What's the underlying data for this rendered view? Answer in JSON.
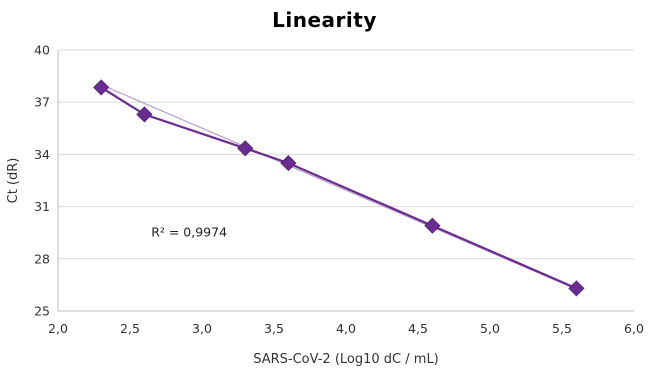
{
  "chart_data": {
    "type": "scatter",
    "title": "Linearity",
    "xlabel": "SARS-CoV-2 (Log10 dC / mL)",
    "ylabel": "Ct (dR)",
    "xlim": [
      2.0,
      6.0
    ],
    "ylim": [
      25,
      40
    ],
    "x_ticks": [
      "2,0",
      "2,5",
      "3,0",
      "3,5",
      "4,0",
      "4,5",
      "5,0",
      "5,5",
      "6,0"
    ],
    "y_ticks": [
      "25",
      "28",
      "31",
      "34",
      "37",
      "40"
    ],
    "x_tick_values": [
      2.0,
      2.5,
      3.0,
      3.5,
      4.0,
      4.5,
      5.0,
      5.5,
      6.0
    ],
    "y_tick_values": [
      25,
      28,
      31,
      34,
      37,
      40
    ],
    "grid": true,
    "series": [
      {
        "x": [
          2.3,
          2.6,
          3.3,
          3.6,
          4.6,
          5.6
        ],
        "y": [
          37.85,
          36.3,
          34.35,
          33.5,
          29.9,
          26.3
        ],
        "color": "#6a2c91",
        "marker": "diamond",
        "connected": true
      }
    ],
    "trendline": {
      "x": [
        2.3,
        5.6
      ],
      "y": [
        38.0,
        26.25
      ],
      "color": "#b9a3cc"
    },
    "annotation": {
      "text": "R² = 0,9974",
      "x": 2.8,
      "y": 29.5
    }
  }
}
